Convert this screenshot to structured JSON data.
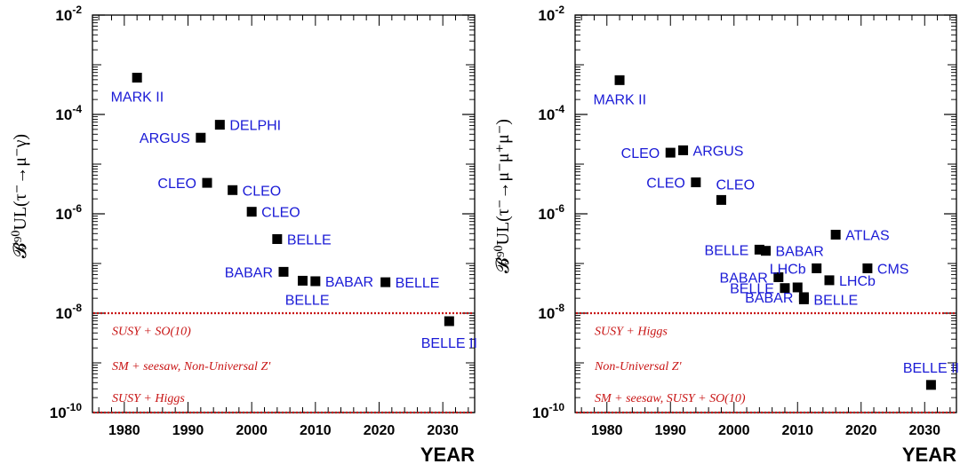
{
  "chart_data": [
    {
      "type": "scatter",
      "ylabel": "𝓑⁹⁰UL(τ⁻→μ⁻γ)",
      "xlabel": "YEAR",
      "xlim": [
        1975,
        2035
      ],
      "ylim_log10": [
        -10,
        -2
      ],
      "log_y": true,
      "x_ticks": [
        "1980",
        "1990",
        "2000",
        "2010",
        "2020",
        "2030"
      ],
      "y_ticks": [
        {
          "mant": "10",
          "exp": "-2"
        },
        {
          "mant": "10",
          "exp": "-4"
        },
        {
          "mant": "10",
          "exp": "-6"
        },
        {
          "mant": "10",
          "exp": "-8"
        },
        {
          "mant": "10",
          "exp": "-10"
        }
      ],
      "marker_color": "#000000",
      "label_color": "#1a1ad6",
      "band_color": "#c81414",
      "points": [
        {
          "x": 1982,
          "y": 0.00055,
          "label": "MARK II",
          "pos": "below-left"
        },
        {
          "x": 1992,
          "y": 3.4e-05,
          "label": "ARGUS",
          "pos": "left"
        },
        {
          "x": 1995,
          "y": 6.2e-05,
          "label": "DELPHI",
          "pos": "right"
        },
        {
          "x": 1993,
          "y": 4.2e-06,
          "label": "CLEO",
          "pos": "left"
        },
        {
          "x": 1997,
          "y": 3e-06,
          "label": "CLEO",
          "pos": "right"
        },
        {
          "x": 2000,
          "y": 1.1e-06,
          "label": "CLEO",
          "pos": "right"
        },
        {
          "x": 2004,
          "y": 3.1e-07,
          "label": "BELLE",
          "pos": "right"
        },
        {
          "x": 2005,
          "y": 6.8e-08,
          "label": "BABAR",
          "pos": "left"
        },
        {
          "x": 2008,
          "y": 4.5e-08,
          "label": "BELLE",
          "pos": "below-left"
        },
        {
          "x": 2010,
          "y": 4.4e-08,
          "label": "BABAR",
          "pos": "right"
        },
        {
          "x": 2021,
          "y": 4.2e-08,
          "label": "BELLE",
          "pos": "right"
        },
        {
          "x": 2031,
          "y": 6.9e-09,
          "label": "BELLE II",
          "pos": "below"
        }
      ],
      "bands": [
        {
          "log10_y": -8,
          "style": "dotted"
        },
        {
          "log10_y": -10,
          "style": "dotted"
        }
      ],
      "band_labels": [
        {
          "text": "SUSY + SO(10)",
          "log10_y": -8.35
        },
        {
          "text": "SM + seesaw, Non-Universal Z'",
          "log10_y": -9.05
        },
        {
          "text": "SUSY + Higgs",
          "log10_y": -9.7
        }
      ]
    },
    {
      "type": "scatter",
      "ylabel": "𝓑⁹⁰UL(τ⁻→μ⁻μ⁺μ⁻)",
      "xlabel": "YEAR",
      "xlim": [
        1975,
        2035
      ],
      "ylim_log10": [
        -10,
        -2
      ],
      "log_y": true,
      "x_ticks": [
        "1980",
        "1990",
        "2000",
        "2010",
        "2020",
        "2030"
      ],
      "y_ticks": [
        {
          "mant": "10",
          "exp": "-2"
        },
        {
          "mant": "10",
          "exp": "-4"
        },
        {
          "mant": "10",
          "exp": "-6"
        },
        {
          "mant": "10",
          "exp": "-8"
        },
        {
          "mant": "10",
          "exp": "-10"
        }
      ],
      "marker_color": "#000000",
      "label_color": "#1a1ad6",
      "band_color": "#c81414",
      "points": [
        {
          "x": 1982,
          "y": 0.00049,
          "label": "MARK II",
          "pos": "below-left"
        },
        {
          "x": 1990,
          "y": 1.7e-05,
          "label": "CLEO",
          "pos": "left"
        },
        {
          "x": 1992,
          "y": 1.9e-05,
          "label": "ARGUS",
          "pos": "right"
        },
        {
          "x": 1994,
          "y": 4.3e-06,
          "label": "CLEO",
          "pos": "left"
        },
        {
          "x": 1998,
          "y": 1.9e-06,
          "label": "CLEO",
          "pos": "above-right"
        },
        {
          "x": 2004,
          "y": 1.9e-07,
          "label": "BELLE",
          "pos": "left"
        },
        {
          "x": 2005,
          "y": 1.8e-07,
          "label": "BABAR",
          "pos": "right"
        },
        {
          "x": 2007,
          "y": 5.3e-08,
          "label": "BABAR",
          "pos": "left"
        },
        {
          "x": 2008,
          "y": 3.2e-08,
          "label": "BELLE",
          "pos": "left"
        },
        {
          "x": 2010,
          "y": 3.3e-08,
          "label": "",
          "pos": "none"
        },
        {
          "x": 2011,
          "y": 2.1e-08,
          "label": "BABAR",
          "pos": "left"
        },
        {
          "x": 2011,
          "y": 1.9e-08,
          "label": "BELLE",
          "pos": "right"
        },
        {
          "x": 2013,
          "y": 8e-08,
          "label": "LHCb",
          "pos": "left"
        },
        {
          "x": 2015,
          "y": 4.6e-08,
          "label": "LHCb",
          "pos": "right"
        },
        {
          "x": 2016,
          "y": 3.8e-07,
          "label": "ATLAS",
          "pos": "right"
        },
        {
          "x": 2021,
          "y": 8e-08,
          "label": "CMS",
          "pos": "right"
        },
        {
          "x": 2031,
          "y": 3.6e-10,
          "label": "BELLE II",
          "pos": "above"
        }
      ],
      "bands": [
        {
          "log10_y": -8,
          "style": "dotted"
        },
        {
          "log10_y": -10,
          "style": "dotted"
        }
      ],
      "band_labels": [
        {
          "text": "SUSY + Higgs",
          "log10_y": -8.35
        },
        {
          "text": "Non-Universal Z'",
          "log10_y": -9.05
        },
        {
          "text": "SM + seesaw, SUSY + SO(10)",
          "log10_y": -9.7
        }
      ]
    }
  ]
}
